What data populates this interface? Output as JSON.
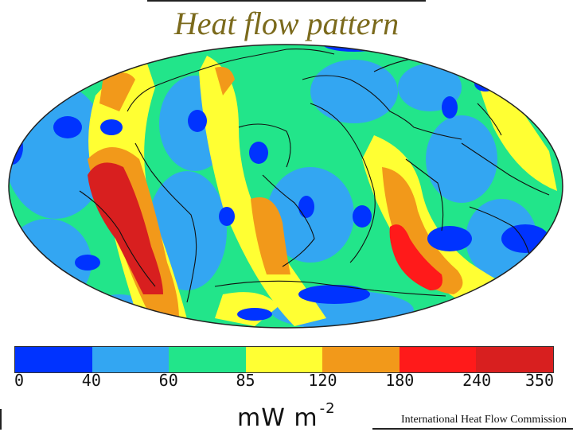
{
  "title": "Heat flow pattern",
  "colors": {
    "dark_blue": "#0033ff",
    "light_blue": "#33a6f2",
    "green": "#22e58a",
    "yellow": "#ffff33",
    "orange": "#f2991a",
    "red": "#ff1a1a",
    "dark_red": "#d81f1f",
    "coast": "#111111"
  },
  "legend": {
    "ticks": [
      "0",
      "40",
      "60",
      "85",
      "120",
      "180",
      "240",
      "350"
    ],
    "bins": [
      {
        "from": 0,
        "to": 40,
        "color": "#0033ff"
      },
      {
        "from": 40,
        "to": 60,
        "color": "#33a6f2"
      },
      {
        "from": 60,
        "to": 85,
        "color": "#22e58a"
      },
      {
        "from": 85,
        "to": 120,
        "color": "#ffff33"
      },
      {
        "from": 120,
        "to": 180,
        "color": "#f2991a"
      },
      {
        "from": 180,
        "to": 240,
        "color": "#ff1a1a"
      },
      {
        "from": 240,
        "to": 350,
        "color": "#d81f1f"
      }
    ],
    "unit_main": "mW m",
    "unit_exp": "-2"
  },
  "credit": "International Heat Flow Commission",
  "projection": "Mollweide"
}
